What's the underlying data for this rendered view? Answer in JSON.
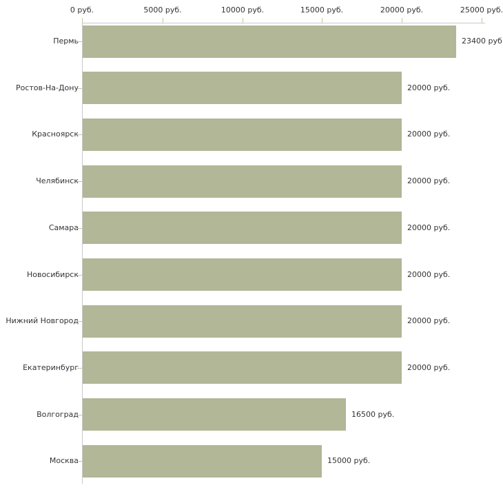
{
  "chart_data": {
    "type": "bar",
    "orientation": "horizontal",
    "title": "",
    "xlabel": "",
    "ylabel": "",
    "grid": false,
    "legend": false,
    "categories": [
      "Пермь",
      "Ростов-На-Дону",
      "Красноярск",
      "Челябинск",
      "Самара",
      "Новосибирск",
      "Нижний Новгород",
      "Екатеринбург",
      "Волгоград",
      "Москва"
    ],
    "values": [
      23400,
      20000,
      20000,
      20000,
      20000,
      20000,
      20000,
      20000,
      16500,
      15000
    ],
    "value_labels": [
      "23400 руб.",
      "20000 руб.",
      "20000 руб.",
      "20000 руб.",
      "20000 руб.",
      "20000 руб.",
      "20000 руб.",
      "20000 руб.",
      "16500 руб.",
      "15000 руб."
    ],
    "x_axis": {
      "position": "top",
      "range": [
        0,
        25000
      ],
      "tick_values": [
        0,
        5000,
        10000,
        15000,
        20000,
        25000
      ],
      "tick_labels": [
        "0 руб.",
        "5000 руб.",
        "10000 руб.",
        "15000 руб.",
        "20000 руб.",
        "25000 руб."
      ]
    },
    "colors": {
      "bar": "#b1b797",
      "axis_line": "#c9c9c9",
      "tick_mark": "#c8c59d",
      "text": "#333333",
      "background": "#ffffff"
    }
  }
}
